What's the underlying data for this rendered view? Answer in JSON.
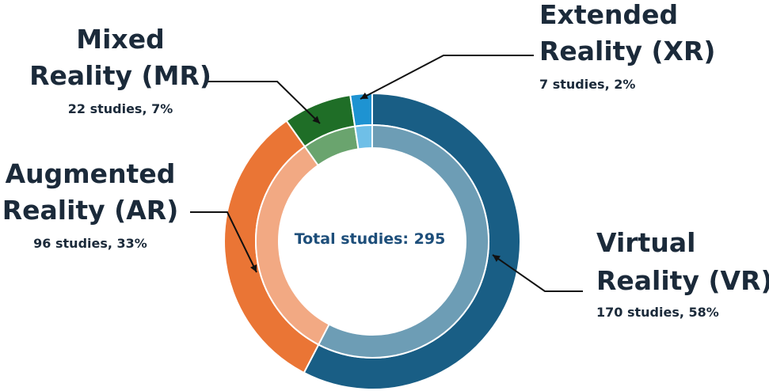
{
  "chart_data": {
    "type": "pie",
    "center_label": "Total studies: 295",
    "slices": [
      {
        "key": "vr",
        "title_lines": [
          "Virtual",
          "Reality (VR)"
        ],
        "value": 170,
        "percent": 58,
        "detail": "170 studies, 58%",
        "color": "#195e85",
        "inner_color": "#6d9db5"
      },
      {
        "key": "ar",
        "title_lines": [
          "Augmented",
          "Reality (AR)"
        ],
        "value": 96,
        "percent": 33,
        "detail": "96 studies, 33%",
        "color": "#ea7535",
        "inner_color": "#f2a983"
      },
      {
        "key": "mr",
        "title_lines": [
          "Mixed",
          "Reality (MR)"
        ],
        "value": 22,
        "percent": 7,
        "detail": "22 studies, 7%",
        "color": "#1f6e27",
        "inner_color": "#6aa46e"
      },
      {
        "key": "xr",
        "title_lines": [
          "Extended",
          "Reality (XR)"
        ],
        "value": 7,
        "percent": 2,
        "detail": "7 studies, 2%",
        "color": "#1e93d2",
        "inner_color": "#6fbfe7"
      }
    ],
    "colors": {
      "text": "#1b2a3a",
      "center_text": "#1d4e7a",
      "separator": "#ffffff"
    }
  }
}
